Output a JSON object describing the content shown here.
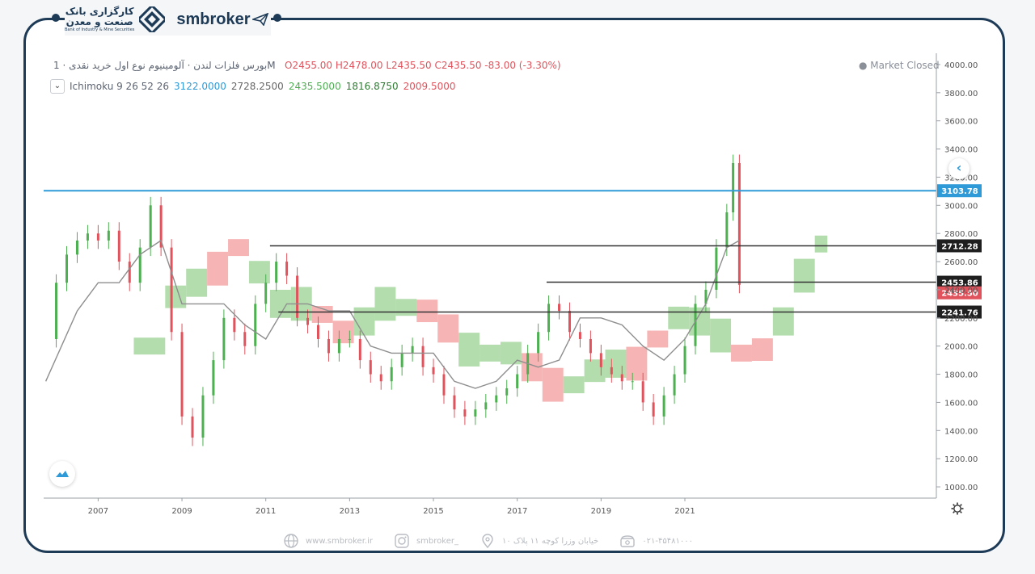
{
  "header": {
    "bank_line1": "کارگزاری بانک",
    "bank_line2": "صنعت و معدن",
    "bank_line3": "Bank of Industry & Mine Securities",
    "brand": "smbroker"
  },
  "legend": {
    "symbol": "بورس فلزات لندن · آلومینیوم نوع اول خرید نقدی · 1M",
    "ohlc": "O2455.00 H2478.00 L2435.50 C2435.50 -83.00 (-3.30%)",
    "ichimoku_label": "Ichimoku 9 26 52 26",
    "ichimoku_values": [
      "3122.0000",
      "2728.2500",
      "2435.5000",
      "1816.8750",
      "2009.5000"
    ],
    "ichimoku_colors": [
      "#2e9bd8",
      "#666666",
      "#4caf50",
      "#2e7d32",
      "#e0535c"
    ],
    "market_status": "Market Closed"
  },
  "colors": {
    "up": "#4caf50",
    "down": "#e0535c",
    "cloud_bull": "#a7d7a0",
    "cloud_bear": "#f4a7a7",
    "blue_level": "#2e9bd8",
    "navy": "#1d3a57"
  },
  "chart_data": {
    "type": "line",
    "title": "بورس فلزات لندن · آلومینیوم نوع اول خرید نقدی · 1M",
    "y_ticks": [
      1000,
      1200,
      1400,
      1600,
      1800,
      2000,
      2200,
      2400,
      2600,
      2800,
      3000,
      3200,
      3400,
      3600,
      3800,
      4000
    ],
    "y_ticks_labels": [
      "1000.00",
      "1200.00",
      "1400.00",
      "1600.00",
      "1800.00",
      "2000.00",
      "2200.00",
      "2400.00",
      "2600.00",
      "2800.00",
      "3000.00",
      "3200.00",
      "3400.00",
      "3600.00",
      "3800.00",
      "4000.00"
    ],
    "ylim": [
      920,
      4080
    ],
    "x_ticks": [
      "2007",
      "2009",
      "2011",
      "2013",
      "2015",
      "2017",
      "2019",
      "2021"
    ],
    "x_tick_pos": [
      2007,
      2009,
      2011,
      2013,
      2015,
      2017,
      2019,
      2021
    ],
    "xlim": [
      2005.7,
      2027.0
    ],
    "price": {
      "x": [
        2005.75,
        2006.0,
        2006.25,
        2006.5,
        2006.75,
        2007.0,
        2007.25,
        2007.5,
        2007.75,
        2008.0,
        2008.25,
        2008.5,
        2008.75,
        2009.0,
        2009.25,
        2009.5,
        2009.75,
        2010.0,
        2010.25,
        2010.5,
        2010.75,
        2011.0,
        2011.25,
        2011.5,
        2011.75,
        2012.0,
        2012.25,
        2012.5,
        2012.75,
        2013.0,
        2013.25,
        2013.5,
        2013.75,
        2014.0,
        2014.25,
        2014.5,
        2014.75,
        2015.0,
        2015.25,
        2015.5,
        2015.75,
        2016.0,
        2016.25,
        2016.5,
        2016.75,
        2017.0,
        2017.25,
        2017.5,
        2017.75,
        2018.0,
        2018.25,
        2018.5,
        2018.75,
        2019.0,
        2019.25,
        2019.5,
        2019.75,
        2020.0,
        2020.25,
        2020.5,
        2020.75,
        2021.0,
        2021.25,
        2021.5,
        2021.75,
        2022.0,
        2022.15,
        2022.3
      ],
      "y": [
        2050,
        2450,
        2650,
        2750,
        2800,
        2750,
        2820,
        2600,
        2450,
        2700,
        3000,
        2700,
        2100,
        1500,
        1350,
        1650,
        1900,
        2200,
        2100,
        2000,
        2300,
        2450,
        2600,
        2500,
        2200,
        2150,
        2050,
        1950,
        2050,
        2050,
        1900,
        1800,
        1750,
        1850,
        1950,
        2000,
        1850,
        1800,
        1650,
        1550,
        1500,
        1550,
        1600,
        1650,
        1700,
        1800,
        1950,
        2100,
        2300,
        2250,
        2100,
        2050,
        1950,
        1850,
        1800,
        1750,
        1750,
        1600,
        1500,
        1650,
        1800,
        2000,
        2300,
        2400,
        2700,
        2950,
        3300,
        2435
      ]
    },
    "ichimoku": {
      "x": [
        2005.75,
        2006.5,
        2007.0,
        2007.5,
        2008.0,
        2008.5,
        2009.0,
        2009.5,
        2010.0,
        2010.5,
        2011.0,
        2011.5,
        2012.0,
        2012.5,
        2013.0,
        2013.5,
        2014.0,
        2014.5,
        2015.0,
        2015.5,
        2016.0,
        2016.5,
        2017.0,
        2017.5,
        2018.0,
        2018.5,
        2019.0,
        2019.5,
        2020.0,
        2020.5,
        2021.0,
        2021.5,
        2022.0,
        2022.3
      ],
      "y": [
        1750,
        2250,
        2450,
        2450,
        2650,
        2750,
        2300,
        2300,
        2300,
        2150,
        2050,
        2300,
        2300,
        2250,
        2250,
        2000,
        1950,
        1950,
        1950,
        1750,
        1700,
        1750,
        1900,
        1850,
        1900,
        2200,
        2200,
        2150,
        2000,
        1900,
        2050,
        2300,
        2700,
        2750
      ]
    },
    "levels": [
      {
        "value": 3103.78,
        "label": "3103.78",
        "color": "#2e9bd8"
      },
      {
        "value": 2712.28,
        "label": "2712.28",
        "color": "#333333"
      },
      {
        "value": 2453.86,
        "label": "2453.86",
        "color": "#333333"
      },
      {
        "value": 2241.76,
        "label": "2241.76",
        "color": "#333333"
      }
    ],
    "last_price": {
      "value": 2435.5,
      "label": "2435.50"
    }
  },
  "footer": {
    "website": "www.smbroker.ir",
    "instagram": "smbroker_",
    "address": "خیابان وزرا کوچه ۱۱ پلاک ۱۰",
    "phone": "۰۲۱-۴۵۴۸۱۰۰۰"
  }
}
